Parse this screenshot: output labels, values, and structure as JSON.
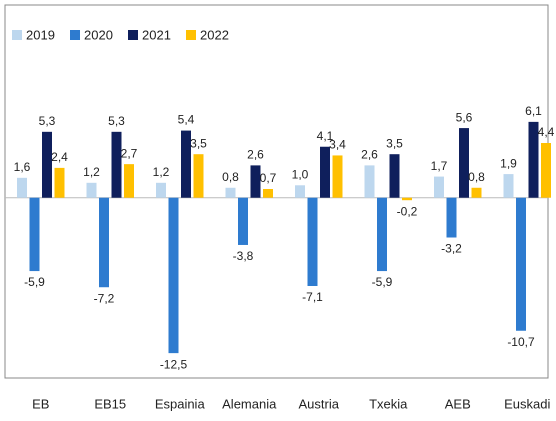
{
  "chart_data": {
    "type": "bar",
    "categories": [
      "EB",
      "EB15",
      "Espainia",
      "Alemania",
      "Austria",
      "Txekia",
      "AEB",
      "Euskadi"
    ],
    "series": [
      {
        "name": "2019",
        "color": "#bdd7ee",
        "values": [
          1.6,
          1.2,
          1.2,
          0.8,
          1.0,
          2.6,
          1.7,
          1.9
        ],
        "value_labels": [
          "1,6",
          "1,2",
          "1,2",
          "0,8",
          "1,0",
          "2,6",
          "1,7",
          "1,9"
        ]
      },
      {
        "name": "2020",
        "color": "#2e7bcf",
        "values": [
          -5.9,
          -7.2,
          -12.5,
          -3.8,
          -7.1,
          -5.9,
          -3.2,
          -10.7
        ],
        "value_labels": [
          "-5,9",
          "-7,2",
          "-12,5",
          "-3,8",
          "-7,1",
          "-5,9",
          "-3,2",
          "-10,7"
        ]
      },
      {
        "name": "2021",
        "color": "#0f1f5c",
        "values": [
          5.3,
          5.3,
          5.4,
          2.6,
          4.1,
          3.5,
          5.6,
          6.1
        ],
        "value_labels": [
          "5,3",
          "5,3",
          "5,4",
          "2,6",
          "4,1",
          "3,5",
          "5,6",
          "6,1"
        ]
      },
      {
        "name": "2022",
        "color": "#ffc000",
        "values": [
          2.4,
          2.7,
          3.5,
          0.7,
          3.4,
          -0.2,
          0.8,
          4.4
        ],
        "value_labels": [
          "2,4",
          "2,7",
          "3,5",
          "0,7",
          "3,4",
          "-0,2",
          "0,8",
          "4,4"
        ]
      }
    ],
    "ylim": [
      -14.5,
      15.5
    ],
    "grid": false,
    "legend": "top-left"
  }
}
